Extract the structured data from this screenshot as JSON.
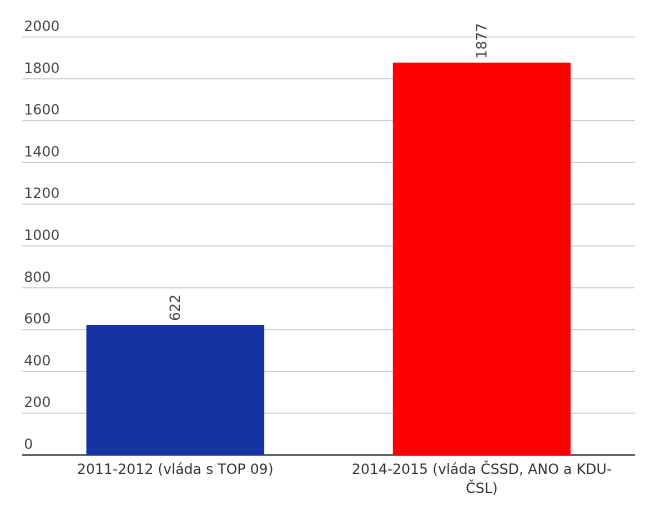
{
  "chart_data": {
    "type": "bar",
    "categories": [
      "2011-2012 (vláda s TOP 09)",
      "2014-2015 (vláda ČSSD, ANO a KDU-ČSL)"
    ],
    "values": [
      622,
      1877
    ],
    "colors": [
      "#1533a2",
      "#ff0000"
    ],
    "ylim": [
      0,
      2000
    ],
    "yticks": [
      0,
      200,
      400,
      600,
      800,
      1000,
      1200,
      1400,
      1600,
      1800,
      2000
    ],
    "grid": true
  }
}
